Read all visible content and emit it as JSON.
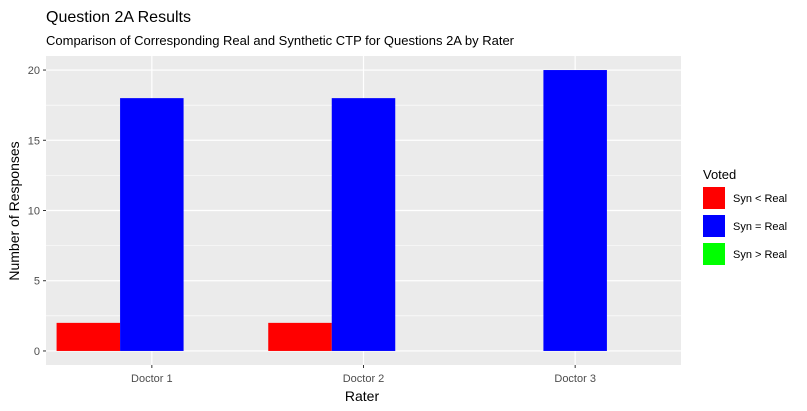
{
  "chart_data": {
    "type": "bar",
    "title": "Question 2A Results",
    "subtitle": "Comparison of Corresponding Real and Synthetic CTP for Questions 2A by Rater",
    "xlabel": "Rater",
    "ylabel": "Number of Responses",
    "categories": [
      "Doctor 1",
      "Doctor 2",
      "Doctor 3"
    ],
    "series": [
      {
        "name": "Syn < Real",
        "color": "#ff0000",
        "values": [
          2,
          2,
          0
        ]
      },
      {
        "name": "Syn = Real",
        "color": "#0000ff",
        "values": [
          18,
          18,
          20
        ]
      },
      {
        "name": "Syn > Real",
        "color": "#00ff00",
        "values": [
          0,
          0,
          0
        ]
      }
    ],
    "ylim": [
      -1,
      21
    ],
    "yticks": [
      0,
      5,
      10,
      15,
      20
    ],
    "grid": true,
    "panel_background": "#ebebeb",
    "legend": {
      "title": "Voted",
      "position": "right"
    }
  }
}
